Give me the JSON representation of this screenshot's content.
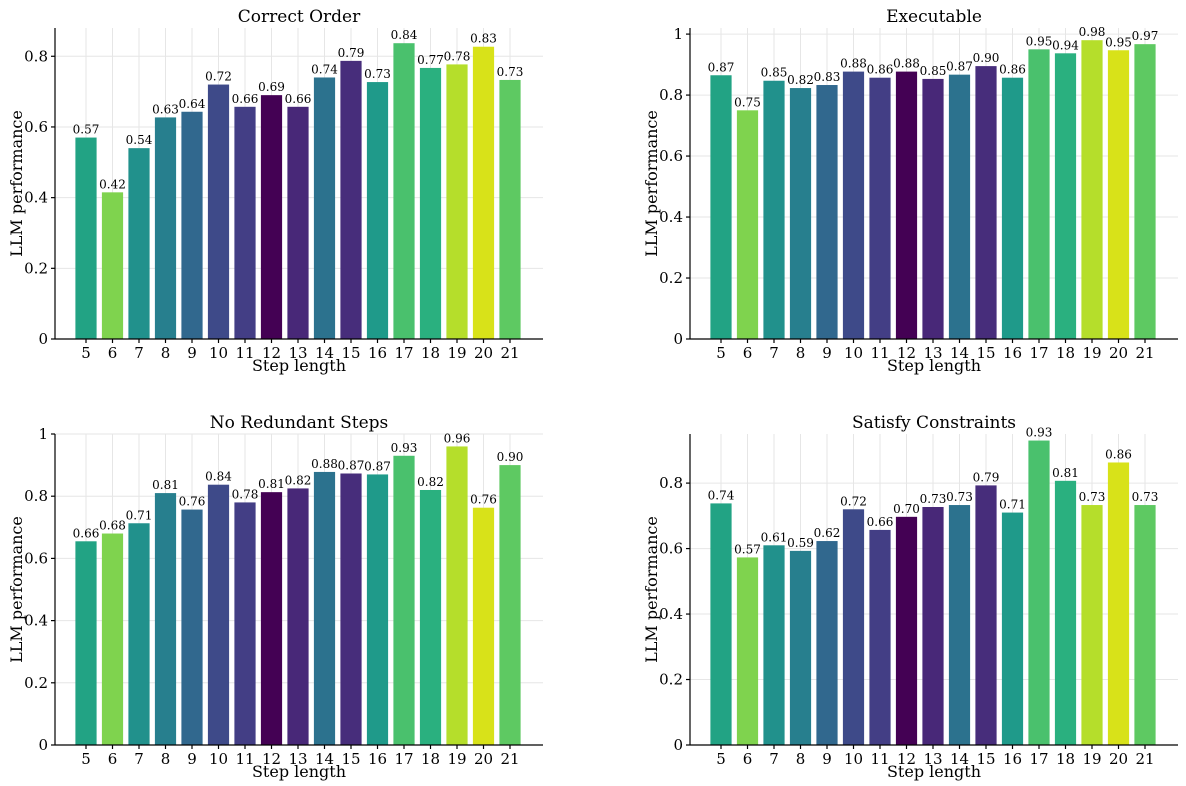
{
  "chart_data": [
    {
      "type": "bar",
      "title": "Correct Order",
      "xlabel": "Step length",
      "ylabel": "LLM performance",
      "categories": [
        "5",
        "6",
        "7",
        "8",
        "9",
        "10",
        "11",
        "12",
        "13",
        "14",
        "15",
        "16",
        "17",
        "18",
        "19",
        "20",
        "21"
      ],
      "values": [
        0.57,
        0.415,
        0.54,
        0.627,
        0.643,
        0.72,
        0.657,
        0.69,
        0.657,
        0.74,
        0.787,
        0.727,
        0.837,
        0.767,
        0.777,
        0.827,
        0.733
      ],
      "labels": [
        "0.57",
        "0.42",
        "0.54",
        "0.63",
        "0.64",
        "0.72",
        "0.66",
        "0.69",
        "0.66",
        "0.74",
        "0.79",
        "0.73",
        "0.84",
        "0.77",
        "0.78",
        "0.83",
        "0.73"
      ],
      "colors": [
        "#22a384",
        "#7fd34e",
        "#21918c",
        "#277f8e",
        "#31688e",
        "#3e4a89",
        "#433e85",
        "#440154",
        "#482878",
        "#2c728e",
        "#472d7b",
        "#1f9a8a",
        "#4ac16d",
        "#2ab07f",
        "#b5de2b",
        "#d8e219",
        "#5ec962"
      ],
      "ylim": [
        0,
        0.88
      ],
      "yticks": [
        0,
        0.2,
        0.4,
        0.6,
        0.8
      ],
      "ytick_labels": [
        "0",
        "0.2",
        "0.4",
        "0.6",
        "0.8"
      ]
    },
    {
      "type": "bar",
      "title": "Executable",
      "xlabel": "Step length",
      "ylabel": "LLM performance",
      "categories": [
        "5",
        "6",
        "7",
        "8",
        "9",
        "10",
        "11",
        "12",
        "13",
        "14",
        "15",
        "16",
        "17",
        "18",
        "19",
        "20",
        "21"
      ],
      "values": [
        0.865,
        0.75,
        0.847,
        0.823,
        0.833,
        0.877,
        0.857,
        0.877,
        0.853,
        0.867,
        0.895,
        0.857,
        0.95,
        0.937,
        0.98,
        0.947,
        0.967
      ],
      "labels": [
        "0.87",
        "0.75",
        "0.85",
        "0.82",
        "0.83",
        "0.88",
        "0.86",
        "0.88",
        "0.85",
        "0.87",
        "0.90",
        "0.86",
        "0.95",
        "0.94",
        "0.98",
        "0.95",
        "0.97"
      ],
      "colors": [
        "#22a384",
        "#7fd34e",
        "#21918c",
        "#277f8e",
        "#31688e",
        "#3e4a89",
        "#433e85",
        "#440154",
        "#482878",
        "#2c728e",
        "#472d7b",
        "#1f9a8a",
        "#4ac16d",
        "#2ab07f",
        "#b5de2b",
        "#d8e219",
        "#5ec962"
      ],
      "ylim": [
        0,
        1.02
      ],
      "yticks": [
        0,
        0.2,
        0.4,
        0.6,
        0.8,
        1.0
      ],
      "ytick_labels": [
        "0",
        "0.2",
        "0.4",
        "0.6",
        "0.8",
        "1"
      ]
    },
    {
      "type": "bar",
      "title": "No Redundant Steps",
      "xlabel": "Step length",
      "ylabel": "LLM performance",
      "categories": [
        "5",
        "6",
        "7",
        "8",
        "9",
        "10",
        "11",
        "12",
        "13",
        "14",
        "15",
        "16",
        "17",
        "18",
        "19",
        "20",
        "21"
      ],
      "values": [
        0.655,
        0.68,
        0.713,
        0.81,
        0.757,
        0.837,
        0.78,
        0.813,
        0.825,
        0.878,
        0.873,
        0.87,
        0.93,
        0.82,
        0.96,
        0.763,
        0.9
      ],
      "labels": [
        "0.66",
        "0.68",
        "0.71",
        "0.81",
        "0.76",
        "0.84",
        "0.78",
        "0.81",
        "0.82",
        "0.88",
        "0.87",
        "0.87",
        "0.93",
        "0.82",
        "0.96",
        "0.76",
        "0.90"
      ],
      "colors": [
        "#22a384",
        "#7fd34e",
        "#21918c",
        "#277f8e",
        "#31688e",
        "#3e4a89",
        "#433e85",
        "#440154",
        "#482878",
        "#2c728e",
        "#472d7b",
        "#1f9a8a",
        "#4ac16d",
        "#2ab07f",
        "#b5de2b",
        "#d8e219",
        "#5ec962"
      ],
      "ylim": [
        0,
        1.0
      ],
      "yticks": [
        0,
        0.2,
        0.4,
        0.6,
        0.8,
        1.0
      ],
      "ytick_labels": [
        "0",
        "0.2",
        "0.4",
        "0.6",
        "0.8",
        "1"
      ]
    },
    {
      "type": "bar",
      "title": "Satisfy Constraints",
      "xlabel": "Step length",
      "ylabel": "LLM performance",
      "categories": [
        "5",
        "6",
        "7",
        "8",
        "9",
        "10",
        "11",
        "12",
        "13",
        "14",
        "15",
        "16",
        "17",
        "18",
        "19",
        "20",
        "21"
      ],
      "values": [
        0.738,
        0.573,
        0.61,
        0.593,
        0.623,
        0.72,
        0.657,
        0.697,
        0.727,
        0.733,
        0.793,
        0.71,
        0.93,
        0.807,
        0.733,
        0.863,
        0.733
      ],
      "labels": [
        "0.74",
        "0.57",
        "0.61",
        "0.59",
        "0.62",
        "0.72",
        "0.66",
        "0.70",
        "0.73",
        "0.73",
        "0.79",
        "0.71",
        "0.93",
        "0.81",
        "0.73",
        "0.86",
        "0.73"
      ],
      "colors": [
        "#22a384",
        "#7fd34e",
        "#21918c",
        "#277f8e",
        "#31688e",
        "#3e4a89",
        "#433e85",
        "#440154",
        "#482878",
        "#2c728e",
        "#472d7b",
        "#1f9a8a",
        "#4ac16d",
        "#2ab07f",
        "#b5de2b",
        "#d8e219",
        "#5ec962"
      ],
      "ylim": [
        0,
        0.95
      ],
      "yticks": [
        0,
        0.2,
        0.4,
        0.6,
        0.8
      ],
      "ytick_labels": [
        "0",
        "0.2",
        "0.4",
        "0.6",
        "0.8"
      ]
    }
  ]
}
